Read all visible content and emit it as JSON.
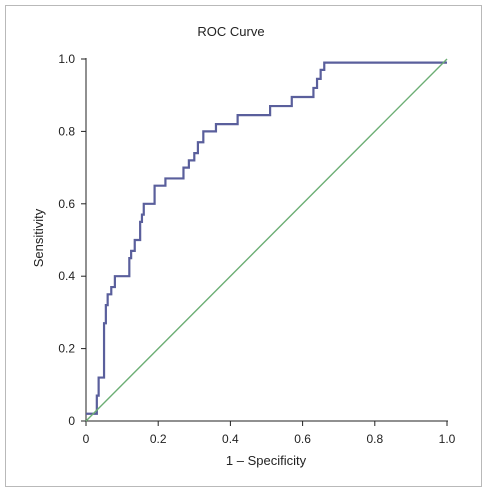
{
  "chart_data": {
    "type": "line",
    "title": "ROC Curve",
    "xlabel": "1 – Specificity",
    "ylabel": "Sensitivity",
    "xlim": [
      0,
      1
    ],
    "ylim": [
      0,
      1
    ],
    "x_ticks": [
      "0",
      "0.2",
      "0.4",
      "0.6",
      "0.8",
      "1.0"
    ],
    "y_ticks": [
      "0",
      "0.2",
      "0.4",
      "0.6",
      "0.8",
      "1.0"
    ],
    "x_tick_values": [
      0,
      0.2,
      0.4,
      0.6,
      0.8,
      1.0
    ],
    "y_tick_values": [
      0,
      0.2,
      0.4,
      0.6,
      0.8,
      1.0
    ],
    "grid": false,
    "series": [
      {
        "color": "#5a5f9c",
        "x": [
          0.0,
          0.03,
          0.03,
          0.035,
          0.035,
          0.05,
          0.05,
          0.055,
          0.055,
          0.06,
          0.06,
          0.07,
          0.07,
          0.08,
          0.08,
          0.085,
          0.085,
          0.09,
          0.09,
          0.12,
          0.12,
          0.125,
          0.125,
          0.135,
          0.135,
          0.15,
          0.15,
          0.155,
          0.155,
          0.16,
          0.16,
          0.175,
          0.175,
          0.19,
          0.19,
          0.2,
          0.2,
          0.22,
          0.22,
          0.225,
          0.225,
          0.27,
          0.27,
          0.285,
          0.285,
          0.3,
          0.3,
          0.31,
          0.31,
          0.325,
          0.325,
          0.345,
          0.345,
          0.36,
          0.36,
          0.42,
          0.42,
          0.51,
          0.51,
          0.57,
          0.57,
          0.63,
          0.63,
          0.64,
          0.64,
          0.65,
          0.65,
          0.66,
          0.66,
          1.0
        ],
        "y": [
          0.02,
          0.02,
          0.07,
          0.07,
          0.12,
          0.12,
          0.27,
          0.27,
          0.32,
          0.32,
          0.35,
          0.35,
          0.37,
          0.37,
          0.4,
          0.4,
          0.4,
          0.4,
          0.4,
          0.4,
          0.45,
          0.45,
          0.47,
          0.47,
          0.5,
          0.5,
          0.55,
          0.55,
          0.57,
          0.57,
          0.6,
          0.6,
          0.6,
          0.6,
          0.65,
          0.65,
          0.65,
          0.65,
          0.67,
          0.67,
          0.67,
          0.67,
          0.7,
          0.7,
          0.72,
          0.72,
          0.74,
          0.74,
          0.77,
          0.77,
          0.8,
          0.8,
          0.8,
          0.8,
          0.82,
          0.82,
          0.845,
          0.845,
          0.87,
          0.87,
          0.895,
          0.895,
          0.92,
          0.92,
          0.945,
          0.945,
          0.97,
          0.97,
          0.99,
          0.99
        ]
      },
      {
        "color": "#6cae74",
        "x": [
          0,
          1
        ],
        "y": [
          0,
          1
        ]
      }
    ]
  }
}
